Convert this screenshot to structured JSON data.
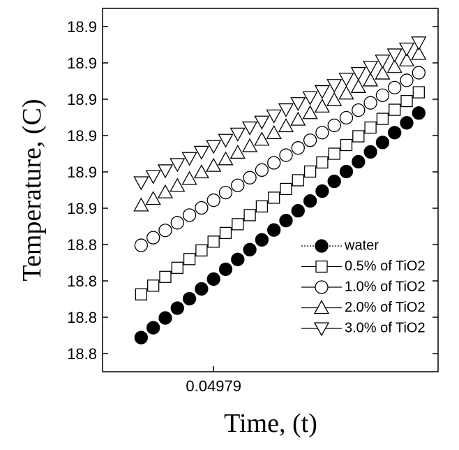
{
  "chart_data": {
    "type": "scatter",
    "x_label": "Time, (t)",
    "y_label": "Temperature, (C)",
    "x": [
      0.04973,
      0.04974,
      0.04975,
      0.04976,
      0.04977,
      0.04978,
      0.04979,
      0.0498,
      0.04981,
      0.04982,
      0.04983,
      0.04984,
      0.04985,
      0.04986,
      0.04987,
      0.04988,
      0.04989,
      0.0499,
      0.04991,
      0.04992,
      0.04993,
      0.04994,
      0.04995,
      0.04996
    ],
    "xlim": [
      0.049698,
      0.049976
    ],
    "xticks": [
      0.04979
    ],
    "ylim": [
      18.805,
      18.905
    ],
    "yticks": [
      {
        "value": 18.81,
        "label": "18.8"
      },
      {
        "value": 18.82,
        "label": "18.8"
      },
      {
        "value": 18.83,
        "label": "18.8"
      },
      {
        "value": 18.84,
        "label": "18.8"
      },
      {
        "value": 18.85,
        "label": "18.9"
      },
      {
        "value": 18.86,
        "label": "18.9"
      },
      {
        "value": 18.87,
        "label": "18.9"
      },
      {
        "value": 18.88,
        "label": "18.9"
      },
      {
        "value": 18.89,
        "label": "18.9"
      },
      {
        "value": 18.9,
        "label": "18.9"
      }
    ],
    "legend": "lower right",
    "series": [
      {
        "name": "water",
        "color": "#000000",
        "marker": "circle-filled",
        "legend_line": "dotted",
        "values": [
          18.8144,
          18.8171,
          18.8198,
          18.8225,
          18.8251,
          18.8278,
          18.8305,
          18.8332,
          18.8359,
          18.8386,
          18.8413,
          18.844,
          18.8466,
          18.8493,
          18.852,
          18.8547,
          18.8574,
          18.8601,
          18.8628,
          18.8655,
          18.8681,
          18.8708,
          18.8735,
          18.8762
        ]
      },
      {
        "name": "0.5% of TiO2",
        "color": "#000000",
        "marker": "square",
        "legend_line": "solid",
        "values": [
          18.8263,
          18.8287,
          18.8311,
          18.8336,
          18.836,
          18.8384,
          18.8408,
          18.8432,
          18.8456,
          18.8481,
          18.8505,
          18.8529,
          18.8553,
          18.8577,
          18.8601,
          18.8626,
          18.865,
          18.8674,
          18.8698,
          18.8722,
          18.8746,
          18.8771,
          18.8795,
          18.8819
        ]
      },
      {
        "name": "1.0% of TiO2",
        "color": "#000000",
        "marker": "circle",
        "legend_line": "solid",
        "values": [
          18.8398,
          18.8419,
          18.8439,
          18.846,
          18.8481,
          18.8501,
          18.8522,
          18.8543,
          18.8563,
          18.8584,
          18.8605,
          18.8625,
          18.8646,
          18.8666,
          18.8687,
          18.8708,
          18.8728,
          18.8749,
          18.877,
          18.879,
          18.8811,
          18.8832,
          18.8852,
          18.8873
        ]
      },
      {
        "name": "2.0% of TiO2",
        "color": "#000000",
        "marker": "triangle-up",
        "legend_line": "solid",
        "values": [
          18.8508,
          18.8526,
          18.8544,
          18.8562,
          18.8581,
          18.8599,
          18.8617,
          18.8635,
          18.8653,
          18.8671,
          18.8689,
          18.8707,
          18.8726,
          18.8744,
          18.8762,
          18.878,
          18.8798,
          18.8816,
          18.8834,
          18.8852,
          18.8871,
          18.8889,
          18.8907,
          18.8925
        ]
      },
      {
        "name": "3.0% of TiO2",
        "color": "#000000",
        "marker": "triangle-down",
        "legend_line": "solid",
        "values": [
          18.8571,
          18.8588,
          18.8604,
          18.8621,
          18.8638,
          18.8655,
          18.8671,
          18.8688,
          18.8705,
          18.8722,
          18.8738,
          18.8755,
          18.8772,
          18.8789,
          18.8805,
          18.8822,
          18.8839,
          18.8856,
          18.8872,
          18.8889,
          18.8906,
          18.8923,
          18.8939,
          18.8956
        ]
      }
    ]
  }
}
